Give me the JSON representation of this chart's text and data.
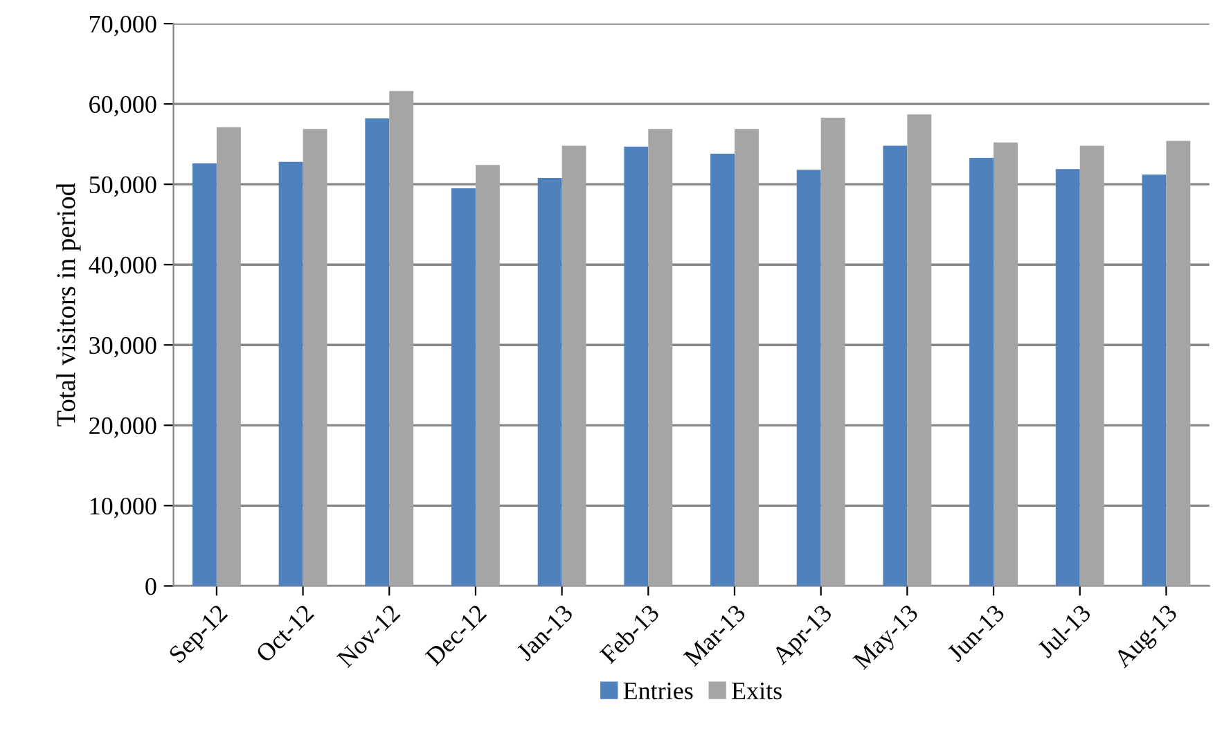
{
  "chart_data": {
    "type": "bar",
    "ylabel": "Total visitors in period",
    "categories": [
      "Sep-12",
      "Oct-12",
      "Nov-12",
      "Dec-12",
      "Jan-13",
      "Feb-13",
      "Mar-13",
      "Apr-13",
      "May-13",
      "Jun-13",
      "Jul-13",
      "Aug-13"
    ],
    "series": [
      {
        "name": "Entries",
        "color": "#4f81bd",
        "values": [
          52600,
          52800,
          58200,
          49500,
          50800,
          54700,
          53800,
          51800,
          54800,
          53300,
          51900,
          51200
        ]
      },
      {
        "name": "Exits",
        "color": "#a5a5a5",
        "values": [
          57100,
          56900,
          61600,
          52400,
          54800,
          56900,
          56900,
          58300,
          58700,
          55200,
          54800,
          55400
        ]
      }
    ],
    "ylim": [
      0,
      70000
    ],
    "yticks": [
      {
        "value": 0,
        "label": "0"
      },
      {
        "value": 10000,
        "label": "10,000"
      },
      {
        "value": 20000,
        "label": "20,000"
      },
      {
        "value": 30000,
        "label": "30,000"
      },
      {
        "value": 40000,
        "label": "40,000"
      },
      {
        "value": 50000,
        "label": "50,000"
      },
      {
        "value": 60000,
        "label": "60,000"
      },
      {
        "value": 70000,
        "label": "70,000"
      }
    ],
    "grid": "y",
    "legend": "bottom"
  }
}
